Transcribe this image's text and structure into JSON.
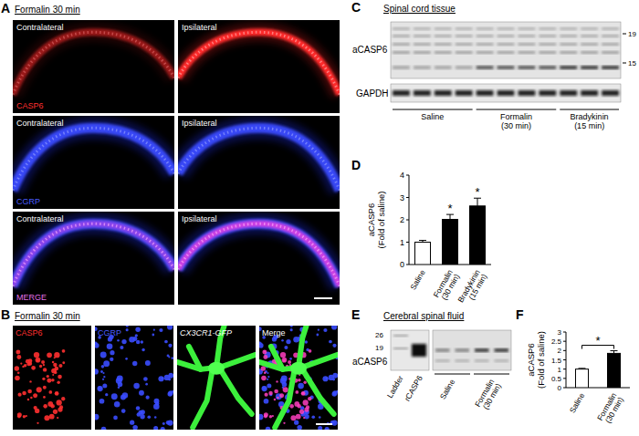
{
  "panel_a": {
    "letter": "A",
    "title": "Formalin 30 min",
    "columns": [
      "Contralateral",
      "Ipsilateral"
    ],
    "rows": [
      "CASP6",
      "CGRP",
      "MERGE"
    ]
  },
  "panel_b": {
    "letter": "B",
    "title": "Formalin 30 min",
    "channels": [
      "CASP6",
      "CGRP",
      "CX3CR1-GFP",
      "Merge"
    ]
  },
  "panel_c": {
    "letter": "C",
    "title": "Spinal cord tissue",
    "bands": [
      "aCASP6",
      "GAPDH"
    ],
    "markers": [
      19,
      15
    ],
    "groups": [
      "Saline",
      "Formalin (30 min)",
      "Bradykinin (15 min)"
    ],
    "lanes_per_group": [
      4,
      4,
      3
    ]
  },
  "panel_e": {
    "letter": "E",
    "title": "Cerebral spinal fluid",
    "band": "aCASP6",
    "markers": [
      26,
      19
    ],
    "lanes": [
      "Ladder",
      "rCASP6"
    ],
    "groups": [
      "Saline",
      "Formalin (30 min)"
    ]
  },
  "chart_data": [
    {
      "letter": "D",
      "type": "bar",
      "y_label": "aCASP6 (Fold of saline)",
      "categories": [
        "Saline",
        "Formalin (30 min)",
        "Bradykinin (15 min)"
      ],
      "values": [
        1,
        2.02,
        2.62
      ],
      "errors": [
        0.08,
        0.22,
        0.35
      ],
      "colors": [
        "#ffffff",
        "#000000",
        "#000000"
      ],
      "ylim": [
        0,
        4
      ],
      "yticks": [
        0,
        1,
        2,
        3,
        4
      ],
      "annotations": [
        null,
        "*",
        "*"
      ]
    },
    {
      "letter": "F",
      "type": "bar",
      "y_label": "aCASP6 (Fold of saline)",
      "categories": [
        "Saline",
        "Formalin (30 min)"
      ],
      "values": [
        1,
        1.85
      ],
      "errors": [
        0.04,
        0.14
      ],
      "colors": [
        "#ffffff",
        "#000000"
      ],
      "ylim": [
        0,
        3
      ],
      "yticks": [
        0,
        0.5,
        1,
        1.5,
        2,
        2.5,
        3
      ],
      "annotations": [
        {
          "label": "*",
          "from": 0,
          "to": 1
        }
      ]
    }
  ]
}
